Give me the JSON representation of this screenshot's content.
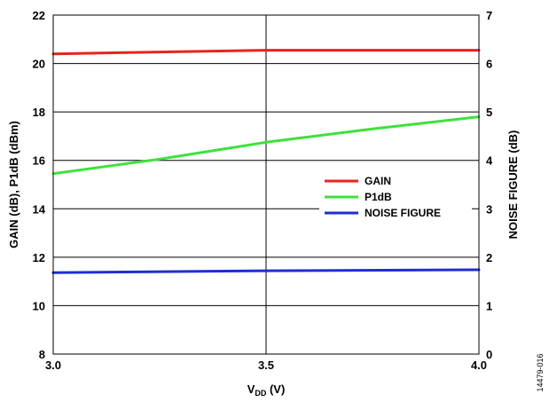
{
  "chart_data": {
    "type": "line",
    "xlabel": {
      "main": "V",
      "sub": "DD",
      "unit": " (V)"
    },
    "ylabel_left": "GAIN (dB), P1dB (dBm)",
    "ylabel_right": "NOISE FIGURE (dB)",
    "xlim": [
      3.0,
      4.0
    ],
    "ylim_left": [
      8,
      22
    ],
    "ylim_right": [
      0,
      7
    ],
    "x_ticks": [
      "3.0",
      "3.5",
      "4.0"
    ],
    "y_ticks_left": [
      "8",
      "10",
      "12",
      "14",
      "16",
      "18",
      "20",
      "22"
    ],
    "y_ticks_right": [
      "0",
      "1",
      "2",
      "3",
      "4",
      "5",
      "6",
      "7"
    ],
    "grid": true,
    "legend_position": "right-middle",
    "series": [
      {
        "name": "GAIN",
        "axis": "left",
        "color": "#e8231e",
        "x": [
          3.0,
          3.5,
          4.0
        ],
        "y": [
          20.4,
          20.55,
          20.55
        ]
      },
      {
        "name": "P1dB",
        "axis": "left",
        "color": "#3ce23c",
        "x": [
          3.0,
          3.25,
          3.5,
          3.75,
          4.0
        ],
        "y": [
          15.45,
          16.05,
          16.75,
          17.3,
          17.8
        ]
      },
      {
        "name": "NOISE FIGURE",
        "axis": "right",
        "color": "#1e2ed2",
        "x": [
          3.0,
          3.5,
          4.0
        ],
        "y": [
          1.68,
          1.72,
          1.74
        ]
      }
    ]
  },
  "figure_id": "14479-016"
}
